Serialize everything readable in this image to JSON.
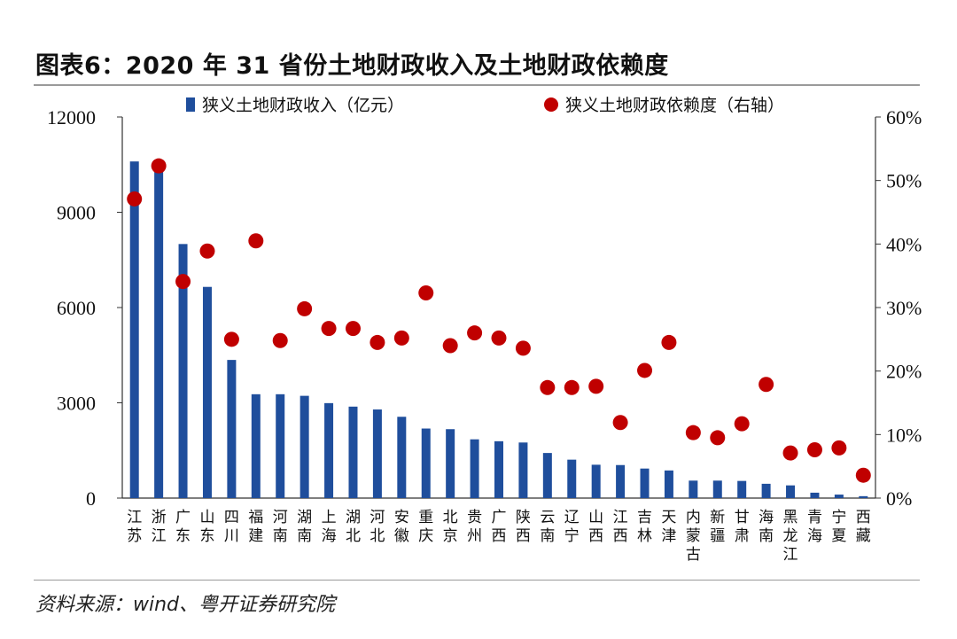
{
  "header": {
    "title": "图表6：2020 年 31 省份土地财政收入及土地财政依赖度"
  },
  "footer": {
    "source": "资料来源：wind、粤开证券研究院"
  },
  "colors": {
    "bar": "#1f4e9c",
    "dot": "#c00000",
    "axis": "#333333"
  },
  "chart_data": {
    "type": "bar",
    "title": "2020 年 31 省份土地财政收入及土地财政依赖度",
    "categories": [
      "江苏",
      "浙江",
      "广东",
      "山东",
      "四川",
      "福建",
      "河南",
      "湖南",
      "上海",
      "湖北",
      "河北",
      "安徽",
      "重庆",
      "北京",
      "贵州",
      "广西",
      "陕西",
      "云南",
      "辽宁",
      "山西",
      "江西",
      "吉林",
      "天津",
      "内蒙古",
      "新疆",
      "甘肃",
      "海南",
      "黑龙江",
      "青海",
      "宁夏",
      "西藏"
    ],
    "series": [
      {
        "name": "狭义土地财政收入（亿元）",
        "axis": "left",
        "kind": "bar",
        "values": [
          10600,
          10500,
          8000,
          6650,
          4350,
          3270,
          3270,
          3220,
          2990,
          2880,
          2790,
          2560,
          2190,
          2170,
          1850,
          1790,
          1750,
          1420,
          1210,
          1050,
          1040,
          930,
          870,
          550,
          550,
          540,
          450,
          400,
          170,
          110,
          60
        ]
      },
      {
        "name": "狭义土地财政依赖度（右轴）",
        "axis": "right",
        "kind": "scatter",
        "values": [
          47.1,
          52.3,
          34.1,
          38.9,
          25.0,
          40.5,
          24.8,
          29.8,
          26.7,
          26.7,
          24.5,
          25.2,
          32.3,
          24.0,
          26.0,
          25.2,
          23.6,
          17.4,
          17.4,
          17.6,
          11.9,
          20.1,
          24.5,
          10.3,
          9.5,
          11.7,
          17.9,
          7.1,
          7.6,
          7.9,
          3.6
        ]
      }
    ],
    "ylim_left": [
      0,
      12000
    ],
    "yticks_left": [
      "0",
      "3000",
      "6000",
      "9000",
      "12000"
    ],
    "ylim_right": [
      0,
      60
    ],
    "yticks_right": [
      "0%",
      "10%",
      "20%",
      "30%",
      "40%",
      "50%",
      "60%"
    ],
    "legend": {
      "placement": "top",
      "entries": [
        "狭义土地财政收入（亿元）",
        "狭义土地财政依赖度（右轴）"
      ]
    }
  }
}
